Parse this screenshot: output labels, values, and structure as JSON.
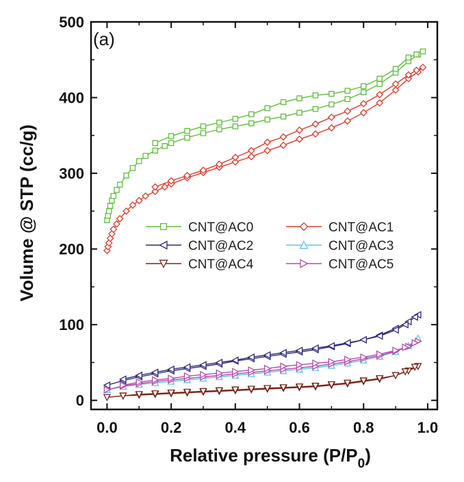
{
  "chart_data": {
    "type": "line",
    "panel_label": "(a)",
    "xlabel_main": "Relative pressure (P/P",
    "xlabel_sub": "0",
    "xlabel_end": ")",
    "ylabel": "Volume @ STP (cc/g)",
    "xlim": [
      -0.05,
      1.03
    ],
    "ylim": [
      -12,
      500
    ],
    "xticks": [
      0.0,
      0.2,
      0.4,
      0.6,
      0.8,
      1.0
    ],
    "xtick_labels": [
      "0.0",
      "0.2",
      "0.4",
      "0.6",
      "0.8",
      "1.0"
    ],
    "yticks": [
      0,
      100,
      200,
      300,
      400,
      500
    ],
    "ytick_labels": [
      "0",
      "100",
      "200",
      "300",
      "400",
      "500"
    ],
    "legend_position": "middle",
    "series": [
      {
        "name": "CNT@AC0",
        "color": "#5cbf3a",
        "marker": "square",
        "x": [
          0.0,
          0.003,
          0.006,
          0.01,
          0.015,
          0.02,
          0.03,
          0.04,
          0.06,
          0.08,
          0.1,
          0.12,
          0.15,
          0.18,
          0.2,
          0.25,
          0.3,
          0.35,
          0.4,
          0.45,
          0.5,
          0.55,
          0.6,
          0.65,
          0.7,
          0.75,
          0.8,
          0.85,
          0.9,
          0.94,
          0.97,
          0.985,
          0.965,
          0.94,
          0.9,
          0.85,
          0.8,
          0.75,
          0.7,
          0.65,
          0.6,
          0.55,
          0.5,
          0.45,
          0.4,
          0.35,
          0.3,
          0.25,
          0.2,
          0.15
        ],
        "y": [
          238,
          244,
          250,
          257,
          264,
          270,
          278,
          285,
          297,
          307,
          316,
          323,
          330,
          336,
          340,
          347,
          353,
          358,
          362,
          366,
          371,
          375,
          380,
          385,
          391,
          398,
          407,
          418,
          433,
          448,
          457,
          461,
          457,
          453,
          438,
          425,
          415,
          409,
          405,
          403,
          399,
          394,
          386,
          378,
          372,
          367,
          362,
          356,
          349,
          340
        ]
      },
      {
        "name": "CNT@AC1",
        "color": "#e33a2a",
        "marker": "diamond",
        "x": [
          0.0,
          0.003,
          0.006,
          0.01,
          0.015,
          0.02,
          0.03,
          0.04,
          0.06,
          0.08,
          0.1,
          0.12,
          0.15,
          0.18,
          0.2,
          0.25,
          0.3,
          0.35,
          0.4,
          0.45,
          0.5,
          0.55,
          0.6,
          0.65,
          0.7,
          0.75,
          0.8,
          0.85,
          0.9,
          0.94,
          0.97,
          0.985,
          0.965,
          0.94,
          0.9,
          0.85,
          0.8,
          0.75,
          0.7,
          0.65,
          0.6,
          0.55,
          0.5,
          0.45,
          0.4,
          0.35,
          0.3,
          0.25,
          0.2,
          0.15
        ],
        "y": [
          198,
          203,
          208,
          214,
          220,
          226,
          233,
          240,
          250,
          258,
          264,
          270,
          276,
          282,
          286,
          294,
          301,
          308,
          315,
          322,
          330,
          337,
          345,
          352,
          360,
          369,
          380,
          393,
          410,
          425,
          434,
          440,
          436,
          430,
          418,
          404,
          392,
          382,
          374,
          365,
          357,
          348,
          341,
          330,
          321,
          312,
          304,
          297,
          290,
          282
        ]
      },
      {
        "name": "CNT@AC2",
        "color": "#2d2a7a",
        "marker": "tri-left",
        "x": [
          0.0,
          0.05,
          0.1,
          0.15,
          0.2,
          0.25,
          0.3,
          0.35,
          0.4,
          0.45,
          0.5,
          0.55,
          0.6,
          0.65,
          0.7,
          0.75,
          0.8,
          0.85,
          0.9,
          0.94,
          0.97,
          0.96,
          0.93,
          0.9,
          0.85,
          0.8,
          0.75,
          0.7,
          0.65,
          0.6,
          0.55,
          0.5,
          0.45,
          0.4,
          0.35,
          0.3,
          0.25,
          0.2,
          0.15,
          0.1,
          0.05
        ],
        "y": [
          20,
          26,
          31,
          35,
          39,
          42,
          45,
          48,
          52,
          55,
          58,
          61,
          64,
          67,
          71,
          75,
          80,
          86,
          95,
          104,
          113,
          110,
          100,
          93,
          85,
          80,
          76,
          72,
          69,
          66,
          63,
          60,
          57,
          53,
          50,
          47,
          44,
          41,
          37,
          33,
          28
        ]
      },
      {
        "name": "CNT@AC3",
        "color": "#5ec3e8",
        "marker": "tri-up",
        "x": [
          0.0,
          0.05,
          0.1,
          0.15,
          0.2,
          0.25,
          0.3,
          0.35,
          0.4,
          0.45,
          0.5,
          0.55,
          0.6,
          0.65,
          0.7,
          0.75,
          0.8,
          0.85,
          0.9,
          0.94,
          0.97
        ],
        "y": [
          14,
          18,
          21,
          23,
          25,
          27,
          29,
          31,
          33,
          35,
          37,
          39,
          41,
          43,
          46,
          49,
          53,
          58,
          64,
          72,
          82
        ]
      },
      {
        "name": "CNT@AC4",
        "color": "#7a2418",
        "marker": "tri-down",
        "x": [
          0.0,
          0.05,
          0.1,
          0.15,
          0.2,
          0.25,
          0.3,
          0.35,
          0.4,
          0.45,
          0.5,
          0.55,
          0.6,
          0.65,
          0.7,
          0.75,
          0.8,
          0.85,
          0.9,
          0.94,
          0.97,
          0.96,
          0.93,
          0.9,
          0.85,
          0.8,
          0.75,
          0.7,
          0.65,
          0.6,
          0.55,
          0.5,
          0.45,
          0.4,
          0.35,
          0.3,
          0.25,
          0.2,
          0.15,
          0.1,
          0.05
        ],
        "y": [
          4,
          6,
          7,
          8,
          9,
          10,
          11,
          12,
          13,
          14,
          15,
          16,
          17,
          18,
          20,
          22,
          25,
          28,
          33,
          39,
          45,
          44,
          38,
          33,
          29,
          26,
          23,
          21,
          19,
          18,
          17,
          16,
          15,
          14,
          13,
          12,
          11,
          10,
          9,
          8,
          6
        ]
      },
      {
        "name": "CNT@AC5",
        "color": "#b64bb0",
        "marker": "tri-right",
        "x": [
          0.0,
          0.05,
          0.1,
          0.15,
          0.2,
          0.25,
          0.3,
          0.35,
          0.4,
          0.45,
          0.5,
          0.55,
          0.6,
          0.65,
          0.7,
          0.75,
          0.8,
          0.85,
          0.9,
          0.94,
          0.97,
          0.96,
          0.93,
          0.9,
          0.85,
          0.8,
          0.75,
          0.7,
          0.65,
          0.6,
          0.55,
          0.5,
          0.45,
          0.4,
          0.35,
          0.3,
          0.25,
          0.2,
          0.15,
          0.1,
          0.05
        ],
        "y": [
          14,
          19,
          22,
          25,
          27,
          29,
          31,
          33,
          35,
          37,
          39,
          41,
          43,
          45,
          48,
          51,
          55,
          59,
          65,
          71,
          78,
          76,
          70,
          66,
          61,
          57,
          54,
          51,
          49,
          47,
          45,
          42,
          40,
          38,
          36,
          34,
          32,
          29,
          27,
          24,
          20
        ]
      }
    ]
  }
}
